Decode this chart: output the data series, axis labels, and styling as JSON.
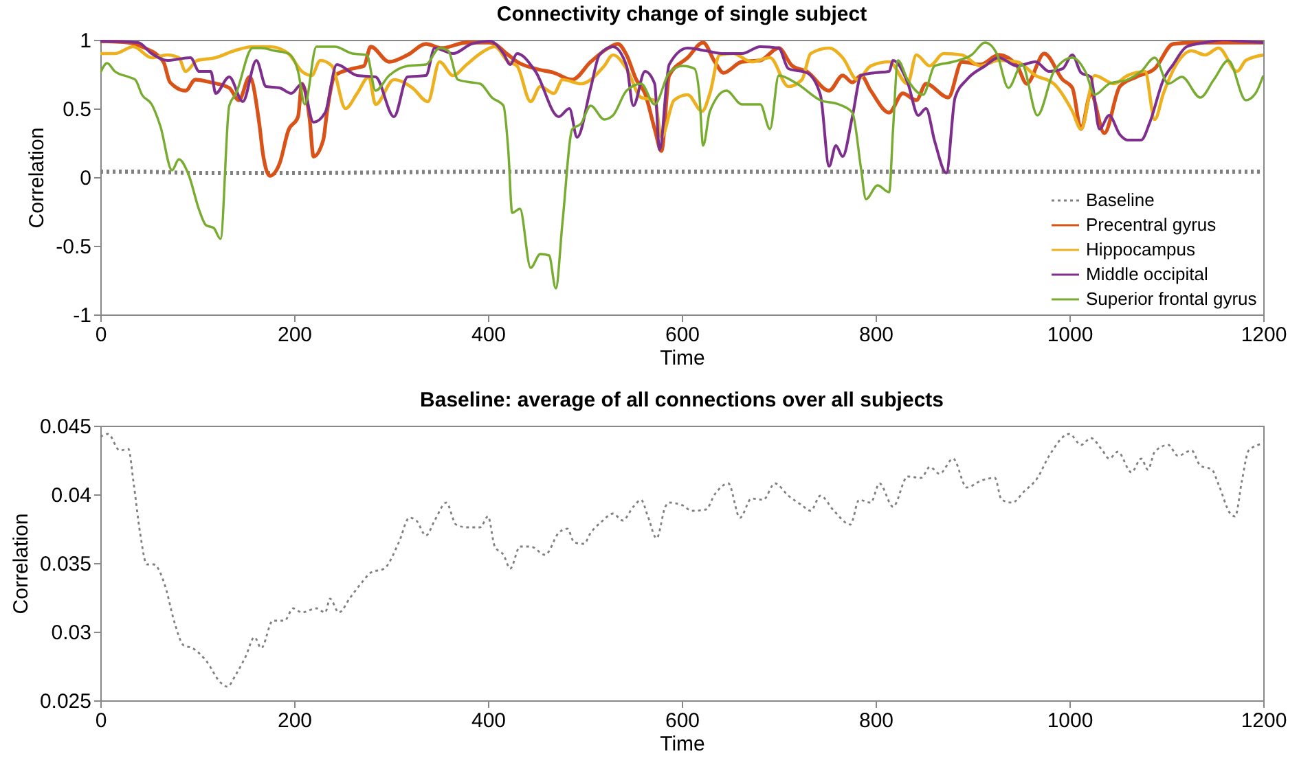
{
  "chart_data": [
    {
      "type": "line",
      "title": "Connectivity change of single subject",
      "xlabel": "Time",
      "ylabel": "Correlation",
      "xlim": [
        0,
        1200
      ],
      "xticks": [
        0,
        200,
        400,
        600,
        800,
        1000,
        1200
      ],
      "ylim": [
        -1,
        1
      ],
      "yticks": [
        -1,
        -0.5,
        0,
        0.5,
        1
      ],
      "legend": "bottom right",
      "marker": "none",
      "grid": false,
      "series": [
        {
          "name": "Baseline",
          "color": "#808080",
          "line_style": "dotted",
          "x": [
            0,
            40,
            100,
            200,
            400,
            600,
            800,
            1000,
            1200
          ],
          "values": [
            0.04,
            0.04,
            0.03,
            0.03,
            0.04,
            0.04,
            0.04,
            0.04,
            0.04
          ]
        },
        {
          "name": "Precentral gyrus",
          "color": "#d95319",
          "line_style": "solid",
          "x": [
            0,
            29,
            43,
            65,
            72,
            88,
            98,
            114,
            133,
            143,
            154,
            164,
            168,
            175,
            185,
            194,
            204,
            208,
            216,
            220,
            230,
            234,
            242,
            260,
            272,
            279,
            298,
            317,
            336,
            352,
            378,
            402,
            421,
            430,
            449,
            468,
            487,
            506,
            524,
            534,
            543,
            553,
            562,
            572,
            579,
            587,
            606,
            622,
            634,
            643,
            662,
            681,
            700,
            714,
            729,
            752,
            766,
            776,
            785,
            795,
            814,
            828,
            842,
            852,
            875,
            889,
            908,
            927,
            946,
            956,
            974,
            993,
            1003,
            1012,
            1022,
            1036,
            1052,
            1069,
            1088,
            1107,
            1131,
            1154,
            1178,
            1200
          ],
          "values": [
            0.99,
            0.98,
            0.95,
            0.84,
            0.69,
            0.63,
            0.71,
            0.69,
            0.65,
            0.56,
            0.73,
            0.39,
            0.16,
            0.01,
            0.1,
            0.34,
            0.44,
            0.68,
            0.42,
            0.15,
            0.27,
            0.48,
            0.74,
            0.79,
            0.81,
            0.95,
            0.84,
            0.89,
            0.97,
            0.94,
            0.98,
            0.98,
            0.89,
            0.84,
            0.79,
            0.76,
            0.71,
            0.84,
            0.94,
            0.97,
            0.89,
            0.71,
            0.61,
            0.35,
            0.19,
            0.74,
            0.87,
            0.98,
            0.84,
            0.76,
            0.84,
            0.85,
            0.94,
            0.81,
            0.77,
            0.63,
            0.74,
            0.69,
            0.74,
            0.63,
            0.47,
            0.61,
            0.56,
            0.68,
            0.58,
            0.84,
            0.82,
            0.89,
            0.81,
            0.68,
            0.9,
            0.71,
            0.65,
            0.35,
            0.61,
            0.32,
            0.66,
            0.73,
            0.79,
            0.97,
            0.98,
            0.98,
            0.98,
            0.98
          ]
        },
        {
          "name": "Hippocampus",
          "color": "#edb120",
          "line_style": "solid",
          "x": [
            0,
            15,
            34,
            53,
            69,
            81,
            88,
            100,
            119,
            138,
            157,
            175,
            194,
            208,
            218,
            227,
            239,
            253,
            265,
            277,
            284,
            303,
            322,
            338,
            350,
            364,
            378,
            392,
            407,
            421,
            430,
            444,
            454,
            468,
            477,
            496,
            520,
            529,
            543,
            558,
            572,
            579,
            592,
            606,
            621,
            629,
            639,
            653,
            672,
            691,
            710,
            724,
            733,
            752,
            766,
            781,
            795,
            814,
            833,
            842,
            856,
            870,
            889,
            908,
            927,
            946,
            965,
            984,
            1003,
            1012,
            1026,
            1046,
            1060,
            1078,
            1088,
            1097,
            1112,
            1126,
            1140,
            1154,
            1173,
            1182,
            1200
          ],
          "values": [
            0.9,
            0.9,
            0.95,
            0.87,
            0.89,
            0.87,
            0.77,
            0.85,
            0.87,
            0.92,
            0.95,
            0.95,
            0.9,
            0.77,
            0.74,
            0.85,
            0.81,
            0.5,
            0.61,
            0.73,
            0.53,
            0.71,
            0.65,
            0.55,
            0.84,
            0.74,
            0.82,
            0.9,
            0.95,
            0.84,
            0.81,
            0.55,
            0.66,
            0.61,
            0.71,
            0.68,
            0.81,
            0.89,
            0.79,
            0.58,
            0.56,
            0.29,
            0.56,
            0.6,
            0.48,
            0.61,
            0.89,
            0.9,
            0.84,
            0.87,
            0.66,
            0.71,
            0.9,
            0.94,
            0.87,
            0.71,
            0.81,
            0.84,
            0.68,
            0.89,
            0.81,
            0.9,
            0.89,
            0.81,
            0.85,
            0.84,
            0.74,
            0.68,
            0.48,
            0.35,
            0.74,
            0.68,
            0.74,
            0.77,
            0.42,
            0.61,
            0.84,
            0.92,
            0.89,
            0.94,
            0.77,
            0.85,
            0.89
          ]
        },
        {
          "name": "Middle occipital",
          "color": "#7e2f8e",
          "line_style": "solid",
          "x": [
            0,
            39,
            53,
            69,
            93,
            102,
            114,
            119,
            133,
            147,
            161,
            171,
            185,
            197,
            208,
            220,
            232,
            244,
            265,
            284,
            303,
            317,
            336,
            345,
            364,
            383,
            402,
            416,
            423,
            430,
            449,
            473,
            484,
            492,
            506,
            515,
            529,
            543,
            550,
            562,
            572,
            577,
            587,
            606,
            625,
            643,
            662,
            681,
            700,
            710,
            729,
            743,
            752,
            759,
            766,
            776,
            785,
            799,
            814,
            818,
            833,
            844,
            852,
            861,
            873,
            882,
            894,
            913,
            927,
            946,
            965,
            979,
            993,
            1003,
            1012,
            1022,
            1031,
            1041,
            1052,
            1060,
            1074,
            1083,
            1097,
            1107,
            1121,
            1140,
            1159,
            1178,
            1200
          ],
          "values": [
            0.99,
            0.98,
            0.9,
            0.85,
            0.87,
            0.77,
            0.77,
            0.61,
            0.73,
            0.55,
            0.85,
            0.66,
            0.65,
            0.61,
            0.68,
            0.4,
            0.47,
            0.82,
            0.74,
            0.73,
            0.44,
            0.73,
            0.74,
            0.94,
            0.9,
            0.97,
            0.99,
            0.9,
            0.82,
            0.9,
            0.77,
            0.44,
            0.5,
            0.29,
            0.65,
            0.89,
            0.95,
            0.81,
            0.52,
            0.77,
            0.68,
            0.2,
            0.82,
            0.94,
            0.92,
            0.9,
            0.9,
            0.95,
            0.94,
            0.79,
            0.76,
            0.6,
            0.08,
            0.23,
            0.15,
            0.44,
            0.74,
            0.76,
            0.77,
            0.85,
            0.69,
            0.45,
            0.5,
            0.26,
            0.03,
            0.58,
            0.71,
            0.81,
            0.87,
            0.81,
            0.84,
            0.77,
            0.79,
            0.89,
            0.76,
            0.73,
            0.35,
            0.45,
            0.31,
            0.27,
            0.27,
            0.4,
            0.71,
            0.82,
            0.95,
            0.98,
            1.0,
            0.99,
            0.98
          ]
        },
        {
          "name": "Superior frontal gyrus",
          "color": "#77ac30",
          "line_style": "solid",
          "x": [
            0,
            7,
            15,
            29,
            36,
            43,
            53,
            62,
            74,
            81,
            91,
            102,
            109,
            117,
            124,
            133,
            140,
            157,
            166,
            180,
            194,
            204,
            211,
            223,
            242,
            260,
            275,
            284,
            298,
            317,
            336,
            350,
            359,
            369,
            383,
            392,
            404,
            416,
            421,
            425,
            433,
            444,
            454,
            463,
            470,
            477,
            487,
            496,
            506,
            520,
            529,
            543,
            558,
            572,
            587,
            601,
            613,
            618,
            622,
            629,
            646,
            662,
            681,
            691,
            700,
            719,
            743,
            762,
            776,
            785,
            790,
            802,
            814,
            818,
            823,
            833,
            849,
            861,
            880,
            899,
            913,
            925,
            937,
            951,
            967,
            984,
            1003,
            1017,
            1026,
            1041,
            1060,
            1074,
            1088,
            1102,
            1116,
            1135,
            1149,
            1164,
            1182,
            1192,
            1200
          ],
          "values": [
            0.76,
            0.83,
            0.77,
            0.73,
            0.71,
            0.6,
            0.53,
            0.37,
            0.05,
            0.13,
            0.02,
            -0.24,
            -0.35,
            -0.37,
            -0.45,
            0.52,
            0.61,
            0.94,
            0.94,
            0.92,
            0.9,
            0.77,
            0.53,
            0.95,
            0.95,
            0.9,
            0.89,
            0.63,
            0.74,
            0.81,
            0.82,
            0.94,
            0.92,
            0.71,
            0.69,
            0.68,
            0.58,
            0.52,
            0.19,
            -0.26,
            -0.23,
            -0.66,
            -0.56,
            -0.57,
            -0.81,
            -0.32,
            0.35,
            0.39,
            0.52,
            0.42,
            0.45,
            0.63,
            0.68,
            0.53,
            0.76,
            0.81,
            0.79,
            0.61,
            0.23,
            0.48,
            0.63,
            0.53,
            0.53,
            0.35,
            0.74,
            0.68,
            0.56,
            0.53,
            0.47,
            0.06,
            -0.16,
            -0.06,
            -0.11,
            0.35,
            0.85,
            0.71,
            0.6,
            0.81,
            0.84,
            0.89,
            0.98,
            0.9,
            0.65,
            0.82,
            0.45,
            0.77,
            0.87,
            0.76,
            0.6,
            0.68,
            0.71,
            0.77,
            0.87,
            0.68,
            0.73,
            0.58,
            0.71,
            0.85,
            0.56,
            0.61,
            0.74
          ]
        }
      ]
    },
    {
      "type": "line",
      "title": "Baseline: average of all connections over all subjects",
      "xlabel": "Time",
      "ylabel": "Correlation",
      "xlim": [
        0,
        1200
      ],
      "xticks": [
        0,
        200,
        400,
        600,
        800,
        1000,
        1200
      ],
      "ylim": [
        0.025,
        0.045
      ],
      "yticks": [
        0.025,
        0.03,
        0.035,
        0.04,
        0.045
      ],
      "legend": false,
      "marker": "none",
      "grid": false,
      "series": [
        {
          "color": "#808080",
          "line_style": "dotted",
          "x": [
            0,
            8,
            20,
            29,
            34,
            41,
            48,
            55,
            67,
            76,
            86,
            95,
            109,
            124,
            131,
            140,
            150,
            159,
            166,
            178,
            190,
            199,
            208,
            223,
            232,
            237,
            246,
            258,
            270,
            279,
            293,
            308,
            319,
            326,
            336,
            345,
            357,
            367,
            378,
            392,
            400,
            407,
            416,
            423,
            433,
            444,
            459,
            473,
            482,
            489,
            499,
            506,
            517,
            529,
            539,
            550,
            558,
            565,
            574,
            583,
            587,
            601,
            610,
            625,
            634,
            648,
            660,
            672,
            684,
            696,
            710,
            724,
            733,
            743,
            757,
            774,
            783,
            795,
            804,
            818,
            833,
            847,
            856,
            866,
            880,
            894,
            909,
            923,
            930,
            941,
            953,
            967,
            979,
            1000,
            1012,
            1022,
            1034,
            1041,
            1050,
            1064,
            1074,
            1081,
            1088,
            1102,
            1112,
            1126,
            1135,
            1147,
            1154,
            1166,
            1171,
            1178,
            1185,
            1200
          ],
          "values": [
            0.0442,
            0.0444,
            0.0432,
            0.0433,
            0.041,
            0.0372,
            0.0349,
            0.0349,
            0.0333,
            0.0308,
            0.029,
            0.0288,
            0.0279,
            0.0263,
            0.026,
            0.0269,
            0.0282,
            0.0296,
            0.0288,
            0.0308,
            0.0308,
            0.0317,
            0.0314,
            0.0317,
            0.0314,
            0.0324,
            0.0314,
            0.0325,
            0.0336,
            0.0343,
            0.0346,
            0.0365,
            0.0383,
            0.0381,
            0.037,
            0.0381,
            0.0394,
            0.0378,
            0.0376,
            0.0376,
            0.0384,
            0.0362,
            0.0356,
            0.0346,
            0.0362,
            0.0362,
            0.0356,
            0.0372,
            0.0375,
            0.0365,
            0.0364,
            0.0372,
            0.038,
            0.0386,
            0.0381,
            0.0391,
            0.0396,
            0.0384,
            0.0368,
            0.0391,
            0.0394,
            0.0392,
            0.0388,
            0.0389,
            0.04,
            0.0408,
            0.0383,
            0.0397,
            0.0396,
            0.0408,
            0.0399,
            0.0392,
            0.0388,
            0.0399,
            0.0388,
            0.0378,
            0.0396,
            0.0394,
            0.0408,
            0.0391,
            0.0413,
            0.0412,
            0.042,
            0.0415,
            0.0426,
            0.0405,
            0.041,
            0.0412,
            0.0396,
            0.0394,
            0.0402,
            0.0412,
            0.0428,
            0.0444,
            0.0436,
            0.0441,
            0.0432,
            0.0426,
            0.0431,
            0.0416,
            0.0426,
            0.0418,
            0.0431,
            0.0436,
            0.0428,
            0.0432,
            0.0421,
            0.0418,
            0.0407,
            0.0386,
            0.0384,
            0.041,
            0.0432,
            0.0437
          ]
        }
      ]
    }
  ]
}
